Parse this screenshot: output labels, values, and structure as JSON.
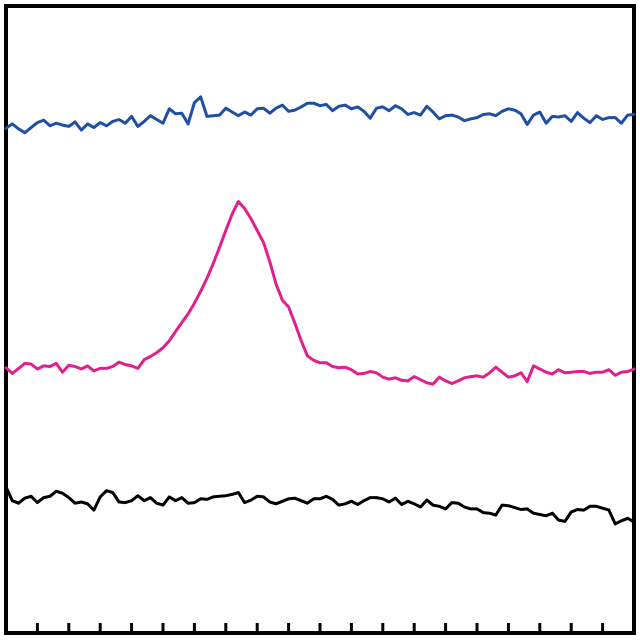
{
  "chart_data": {
    "type": "line",
    "title": "",
    "xlabel": "",
    "ylabel": "",
    "x": [
      0,
      1,
      2,
      3,
      4,
      5,
      6,
      7,
      8,
      9,
      10,
      11,
      12,
      13,
      14,
      15,
      16,
      17,
      18,
      19,
      20,
      21,
      22,
      23,
      24,
      25,
      26,
      27,
      28,
      29,
      30,
      31,
      32,
      33,
      34,
      35,
      36,
      37,
      38,
      39,
      40,
      41,
      42,
      43,
      44,
      45,
      46,
      47,
      48,
      49,
      50,
      51,
      52,
      53,
      54,
      55,
      56,
      57,
      58,
      59,
      60,
      61,
      62,
      63,
      64,
      65,
      66,
      67,
      68,
      69,
      70,
      71,
      72,
      73,
      74,
      75,
      76,
      77,
      78,
      79,
      80,
      81,
      82,
      83,
      84,
      85,
      86,
      87,
      88,
      89,
      90,
      91,
      92,
      93,
      94,
      95,
      96,
      97,
      98,
      99,
      100
    ],
    "xlim": [
      0,
      100
    ],
    "ylim": [
      0,
      100
    ],
    "x_tick_count": 20,
    "grid": false,
    "legend": "none",
    "series": [
      {
        "color": "#1f4fa3",
        "values": [
          80.5,
          81.2,
          80.4,
          79.8,
          80.6,
          81.4,
          81.8,
          80.9,
          81.3,
          81.0,
          80.8,
          81.5,
          80.2,
          81.2,
          80.6,
          81.4,
          80.9,
          81.6,
          81.9,
          81.3,
          82.4,
          80.8,
          81.6,
          82.5,
          81.9,
          81.3,
          83.6,
          82.8,
          82.9,
          81.2,
          84.6,
          85.5,
          82.4,
          82.5,
          82.6,
          83.7,
          83.1,
          82.5,
          83.1,
          82.6,
          83.6,
          83.7,
          82.9,
          83.7,
          84.2,
          83.2,
          83.4,
          83.9,
          84.5,
          84.5,
          84.1,
          84.3,
          83.3,
          84.0,
          84.2,
          83.6,
          83.9,
          83.2,
          82.1,
          83.7,
          83.9,
          83.3,
          84.1,
          83.6,
          82.7,
          83.0,
          82.6,
          84.0,
          83.1,
          82.0,
          82.5,
          82.6,
          82.3,
          81.7,
          82.0,
          82.2,
          82.7,
          82.8,
          82.5,
          83.2,
          83.6,
          83.4,
          82.8,
          81.1,
          82.6,
          83.1,
          81.3,
          82.4,
          82.3,
          82.5,
          81.6,
          83.0,
          82.1,
          81.4,
          82.5,
          81.9,
          82.2,
          82.2,
          81.3,
          82.6,
          82.7
        ]
      },
      {
        "color": "#e0208f",
        "values": [
          42.3,
          41.4,
          42.2,
          43.0,
          42.9,
          42.1,
          42.6,
          42.5,
          43.0,
          41.6,
          42.7,
          42.5,
          42.1,
          42.6,
          41.8,
          42.2,
          42.2,
          42.5,
          43.2,
          42.8,
          42.6,
          42.2,
          43.6,
          44.1,
          44.7,
          45.5,
          46.6,
          48.1,
          49.5,
          50.9,
          52.6,
          54.5,
          56.6,
          58.9,
          61.5,
          64.2,
          66.8,
          68.8,
          67.7,
          66.1,
          64.2,
          62.3,
          59.2,
          55.7,
          53.1,
          52.0,
          49.4,
          46.6,
          44.2,
          43.5,
          43.1,
          43.1,
          42.5,
          42.3,
          42.4,
          42.0,
          41.3,
          41.4,
          41.7,
          41.5,
          40.8,
          40.5,
          40.7,
          40.3,
          40.2,
          40.9,
          40.4,
          39.9,
          39.7,
          40.8,
          40.2,
          39.8,
          40.2,
          40.7,
          40.9,
          41.0,
          40.8,
          41.5,
          42.4,
          41.6,
          40.8,
          41.0,
          41.5,
          40.1,
          42.6,
          42.1,
          41.6,
          41.3,
          42.0,
          41.5,
          41.6,
          41.7,
          41.7,
          41.4,
          41.6,
          41.6,
          42.0,
          41.1,
          41.6,
          41.7,
          42.1
        ]
      },
      {
        "color": "#000000",
        "values": [
          23.3,
          21.1,
          20.7,
          21.5,
          21.8,
          20.8,
          21.6,
          21.8,
          22.6,
          22.3,
          21.6,
          20.7,
          20.9,
          20.6,
          19.6,
          21.7,
          22.7,
          22.4,
          20.9,
          20.8,
          21.1,
          21.9,
          21.1,
          21.6,
          20.7,
          20.4,
          21.7,
          21.1,
          21.6,
          20.7,
          20.8,
          21.4,
          21.3,
          21.7,
          21.8,
          21.9,
          22.1,
          22.4,
          20.8,
          21.2,
          21.8,
          21.7,
          20.9,
          20.6,
          21.0,
          21.4,
          21.5,
          21.1,
          20.7,
          21.4,
          21.4,
          21.8,
          21.3,
          20.4,
          20.6,
          21.0,
          20.5,
          21.1,
          21.6,
          21.6,
          21.4,
          20.9,
          21.5,
          20.5,
          21.0,
          20.6,
          20.1,
          21.2,
          20.4,
          20.2,
          19.8,
          20.8,
          20.7,
          20.1,
          19.8,
          19.8,
          19.2,
          19.1,
          18.8,
          20.4,
          20.3,
          20.0,
          19.7,
          19.8,
          19.1,
          18.9,
          18.7,
          19.1,
          18.0,
          17.8,
          19.3,
          19.7,
          19.6,
          20.2,
          20.2,
          19.9,
          19.6,
          17.4,
          17.9,
          18.3,
          17.7
        ]
      }
    ]
  }
}
